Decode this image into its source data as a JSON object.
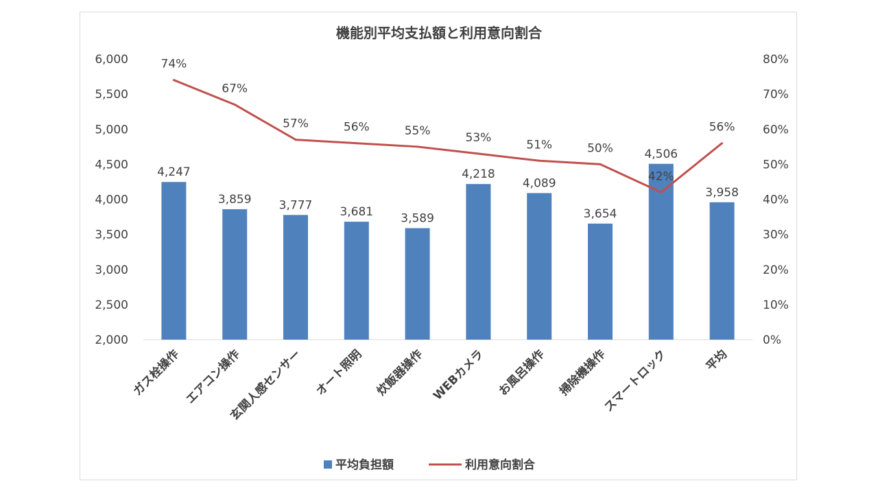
{
  "chart_data": {
    "type": "bar",
    "title": "機能別平均支払額と利用意向割合",
    "categories": [
      "ガス栓操作",
      "エアコン操作",
      "玄関人感センサー",
      "オート照明",
      "炊飯器操作",
      "WEBカメラ",
      "お風呂操作",
      "掃除機操作",
      "スマートロック",
      "平均"
    ],
    "series": [
      {
        "name": "平均負担額",
        "type": "bar",
        "axis": "left",
        "color": "#4f81bd",
        "values": [
          4247,
          3859,
          3777,
          3681,
          3589,
          4218,
          4089,
          3654,
          4506,
          3958
        ],
        "labels": [
          "4,247",
          "3,859",
          "3,777",
          "3,681",
          "3,589",
          "4,218",
          "4,089",
          "3,654",
          "4,506",
          "3,958"
        ]
      },
      {
        "name": "利用意向割合",
        "type": "line",
        "axis": "right",
        "color": "#c0504d",
        "values": [
          74,
          67,
          57,
          56,
          55,
          53,
          51,
          50,
          42,
          56
        ],
        "labels": [
          "74%",
          "67%",
          "57%",
          "56%",
          "55%",
          "53%",
          "51%",
          "50%",
          "42%",
          "56%"
        ]
      }
    ],
    "y_left": {
      "range": [
        2000,
        6000
      ],
      "ticks": [
        "2,000",
        "2,500",
        "3,000",
        "3,500",
        "4,000",
        "4,500",
        "5,000",
        "5,500",
        "6,000"
      ]
    },
    "y_right": {
      "range": [
        0,
        80
      ],
      "ticks": [
        "0%",
        "10%",
        "20%",
        "30%",
        "40%",
        "50%",
        "60%",
        "70%",
        "80%"
      ]
    },
    "grid": false,
    "legend": "bottom"
  }
}
